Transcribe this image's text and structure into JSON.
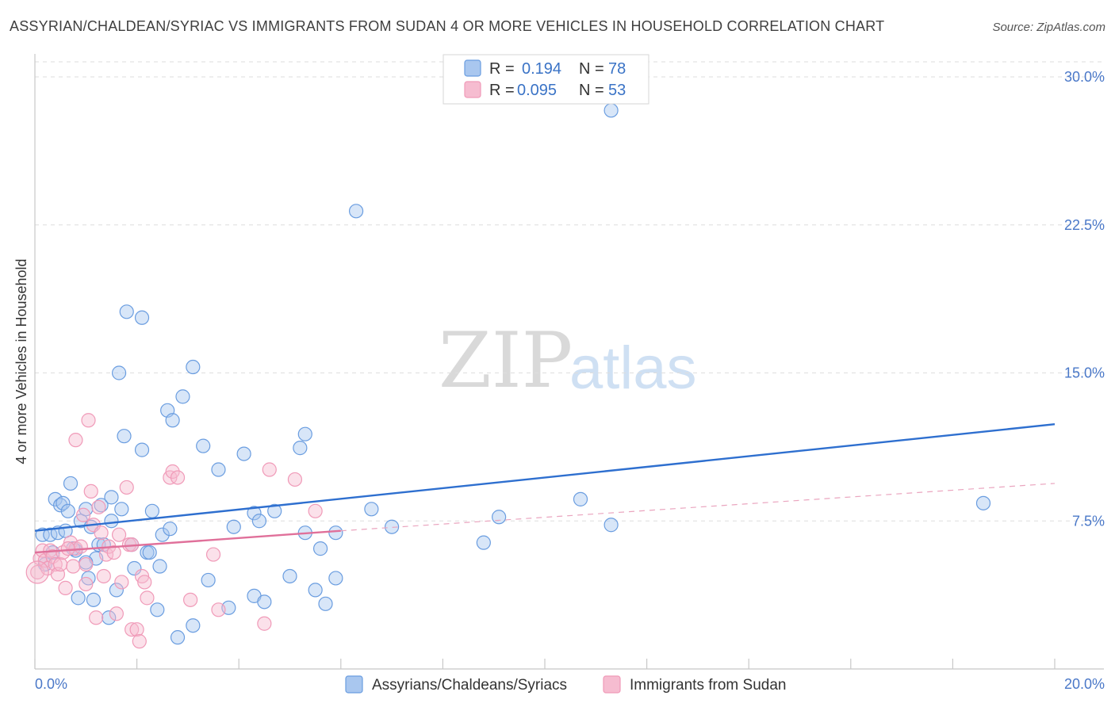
{
  "chart_data": {
    "type": "scatter",
    "title": "ASSYRIAN/CHALDEAN/SYRIAC VS IMMIGRANTS FROM SUDAN 4 OR MORE VEHICLES IN HOUSEHOLD CORRELATION CHART",
    "source": "Source: ZipAtlas.com",
    "ylabel": "4 or more Vehicles in Household",
    "xlim": [
      0,
      20
    ],
    "ylim": [
      0,
      31.2
    ],
    "x_tick_labels": [
      "0.0%",
      "20.0%"
    ],
    "y_ticks": [
      7.5,
      15.0,
      22.5,
      30.0
    ],
    "y_tick_labels": [
      "7.5%",
      "15.0%",
      "22.5%",
      "30.0%"
    ],
    "watermark": {
      "zip": "ZIP",
      "atlas": "atlas"
    },
    "legend_stats": [
      {
        "r_label": "R =",
        "r_value": "0.194",
        "n_label": "N =",
        "n_value": "78",
        "color": "#6a9de0"
      },
      {
        "r_label": "R =",
        "r_value": "0.095",
        "n_label": "N =",
        "n_value": "53",
        "color": "#f09ab8"
      }
    ],
    "series": [
      {
        "name": "Assyrians/Chaldeans/Syriacs",
        "color": "#6a9de0",
        "fill": "#a9c7ef",
        "trend": {
          "x0": 0,
          "y0": 7.0,
          "x1": 20,
          "y1": 12.4,
          "color": "#2e6fcf"
        },
        "points": [
          [
            0.15,
            6.8
          ],
          [
            0.3,
            6.8
          ],
          [
            0.4,
            8.6
          ],
          [
            0.45,
            6.9
          ],
          [
            0.5,
            8.3
          ],
          [
            0.55,
            8.4
          ],
          [
            0.6,
            7.0
          ],
          [
            0.65,
            8.0
          ],
          [
            0.7,
            9.4
          ],
          [
            0.8,
            6.0
          ],
          [
            0.85,
            3.6
          ],
          [
            0.9,
            7.5
          ],
          [
            1.0,
            8.1
          ],
          [
            1.05,
            4.6
          ],
          [
            1.1,
            7.2
          ],
          [
            1.15,
            3.5
          ],
          [
            1.2,
            5.6
          ],
          [
            1.25,
            6.3
          ],
          [
            1.3,
            8.3
          ],
          [
            1.35,
            6.3
          ],
          [
            1.45,
            2.6
          ],
          [
            1.5,
            7.5
          ],
          [
            1.5,
            8.7
          ],
          [
            1.6,
            4.0
          ],
          [
            1.65,
            15.0
          ],
          [
            1.7,
            8.1
          ],
          [
            1.75,
            11.8
          ],
          [
            1.8,
            18.1
          ],
          [
            1.9,
            6.3
          ],
          [
            1.95,
            5.1
          ],
          [
            2.1,
            17.8
          ],
          [
            2.1,
            11.1
          ],
          [
            2.2,
            5.9
          ],
          [
            2.25,
            5.9
          ],
          [
            2.3,
            8.0
          ],
          [
            2.4,
            3.0
          ],
          [
            2.45,
            5.2
          ],
          [
            2.5,
            6.8
          ],
          [
            2.6,
            13.1
          ],
          [
            2.65,
            7.1
          ],
          [
            2.7,
            12.6
          ],
          [
            2.8,
            1.6
          ],
          [
            2.9,
            13.8
          ],
          [
            3.1,
            15.3
          ],
          [
            3.1,
            2.2
          ],
          [
            3.3,
            11.3
          ],
          [
            3.4,
            4.5
          ],
          [
            3.6,
            10.1
          ],
          [
            3.8,
            3.1
          ],
          [
            3.9,
            7.2
          ],
          [
            4.1,
            10.9
          ],
          [
            4.3,
            3.7
          ],
          [
            4.3,
            7.9
          ],
          [
            4.4,
            7.5
          ],
          [
            4.5,
            3.4
          ],
          [
            4.7,
            8.0
          ],
          [
            5.0,
            4.7
          ],
          [
            5.2,
            11.2
          ],
          [
            5.3,
            11.9
          ],
          [
            5.3,
            6.9
          ],
          [
            5.5,
            4.0
          ],
          [
            5.6,
            6.1
          ],
          [
            5.7,
            3.3
          ],
          [
            5.9,
            4.6
          ],
          [
            5.9,
            6.9
          ],
          [
            6.3,
            23.2
          ],
          [
            6.6,
            8.1
          ],
          [
            7.0,
            7.2
          ],
          [
            8.8,
            6.4
          ],
          [
            9.1,
            7.7
          ],
          [
            10.7,
            8.6
          ],
          [
            11.3,
            7.3
          ],
          [
            11.3,
            28.3
          ],
          [
            18.6,
            8.4
          ],
          [
            0.2,
            5.3
          ],
          [
            0.35,
            5.9
          ],
          [
            0.75,
            6.1
          ],
          [
            1.0,
            5.4
          ]
        ]
      },
      {
        "name": "Immigrants from Sudan",
        "color": "#f09ab8",
        "fill": "#f6bcd0",
        "trend": {
          "x0": 0,
          "y0": 5.9,
          "x1": 6.0,
          "y1": 7.0,
          "color": "#e0709a"
        },
        "trend_extension": {
          "x0": 6.0,
          "y0": 7.0,
          "x1": 20,
          "y1": 9.4,
          "color": "#eaa5bf"
        },
        "points": [
          [
            0.05,
            4.9
          ],
          [
            0.1,
            5.6
          ],
          [
            0.15,
            6.0
          ],
          [
            0.2,
            5.5
          ],
          [
            0.25,
            5.1
          ],
          [
            0.3,
            6.0
          ],
          [
            0.35,
            5.7
          ],
          [
            0.4,
            5.3
          ],
          [
            0.45,
            4.8
          ],
          [
            0.5,
            5.3
          ],
          [
            0.55,
            5.9
          ],
          [
            0.6,
            4.1
          ],
          [
            0.7,
            6.4
          ],
          [
            0.75,
            5.2
          ],
          [
            0.8,
            6.1
          ],
          [
            0.8,
            11.6
          ],
          [
            0.9,
            6.2
          ],
          [
            0.95,
            7.8
          ],
          [
            1.0,
            5.3
          ],
          [
            1.0,
            4.3
          ],
          [
            1.05,
            12.6
          ],
          [
            1.1,
            9.0
          ],
          [
            1.15,
            7.3
          ],
          [
            1.2,
            2.6
          ],
          [
            1.25,
            8.2
          ],
          [
            1.3,
            6.9
          ],
          [
            1.35,
            4.7
          ],
          [
            1.4,
            5.8
          ],
          [
            1.45,
            6.2
          ],
          [
            1.55,
            5.9
          ],
          [
            1.6,
            2.8
          ],
          [
            1.65,
            6.8
          ],
          [
            1.7,
            4.4
          ],
          [
            1.8,
            9.2
          ],
          [
            1.85,
            6.3
          ],
          [
            1.9,
            2.0
          ],
          [
            2.0,
            2.0
          ],
          [
            2.05,
            1.4
          ],
          [
            2.1,
            4.7
          ],
          [
            2.15,
            4.4
          ],
          [
            2.2,
            3.6
          ],
          [
            2.65,
            9.7
          ],
          [
            2.7,
            10.0
          ],
          [
            2.8,
            9.7
          ],
          [
            3.05,
            3.5
          ],
          [
            3.5,
            5.8
          ],
          [
            3.6,
            3.0
          ],
          [
            4.5,
            2.3
          ],
          [
            4.6,
            10.1
          ],
          [
            5.1,
            9.6
          ],
          [
            5.5,
            8.0
          ],
          [
            1.9,
            6.3
          ],
          [
            0.65,
            6.1
          ]
        ]
      }
    ]
  }
}
